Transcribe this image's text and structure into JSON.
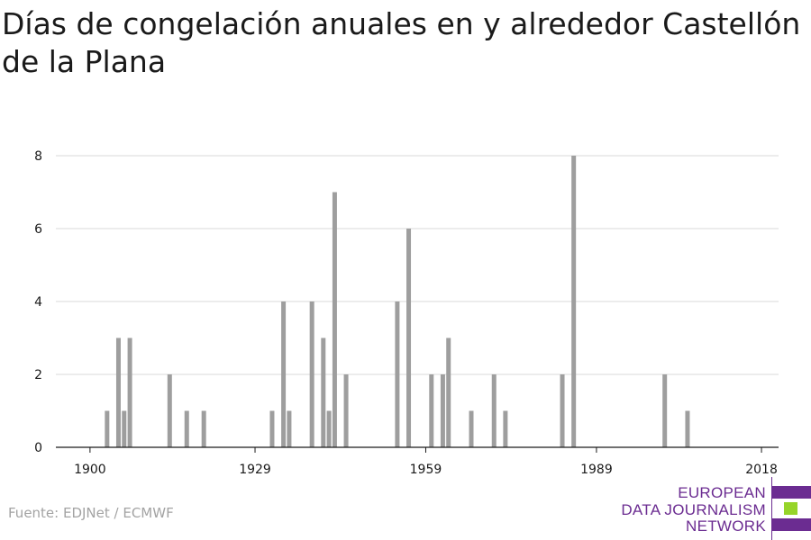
{
  "title": "Días de congelación anuales en y alrededor Castellón de la Plana",
  "source": "Fuente: EDJNet / ECMWF",
  "logo": {
    "line1": "EUROPEAN",
    "line2": "DATA JOURNALISM",
    "line3": "NETWORK",
    "colors": {
      "purple": "#6b2c91",
      "green": "#96d42a"
    }
  },
  "colors": {
    "bar": "#9e9e9e",
    "grid": "#d9d9d9",
    "axis": "#1a1a1a",
    "tick_text": "#1a1a1a"
  },
  "chart_data": {
    "type": "bar",
    "title": "Días de congelación anuales en y alrededor Castellón de la Plana",
    "xlabel": "",
    "ylabel": "",
    "xlim": [
      1894,
      2021
    ],
    "ylim": [
      0,
      8
    ],
    "x_ticks": [
      1900,
      1929,
      1959,
      1989,
      2018
    ],
    "y_ticks": [
      0,
      2,
      4,
      6,
      8
    ],
    "grid": "horizontal",
    "x": [
      1903,
      1905,
      1906,
      1907,
      1914,
      1917,
      1920,
      1932,
      1934,
      1935,
      1939,
      1941,
      1942,
      1943,
      1945,
      1954,
      1956,
      1960,
      1962,
      1963,
      1967,
      1971,
      1973,
      1983,
      1985,
      2001,
      2005
    ],
    "values": [
      1,
      3,
      1,
      3,
      2,
      1,
      1,
      1,
      4,
      1,
      4,
      3,
      1,
      7,
      2,
      4,
      6,
      2,
      2,
      3,
      1,
      2,
      1,
      2,
      8,
      2,
      1
    ]
  }
}
